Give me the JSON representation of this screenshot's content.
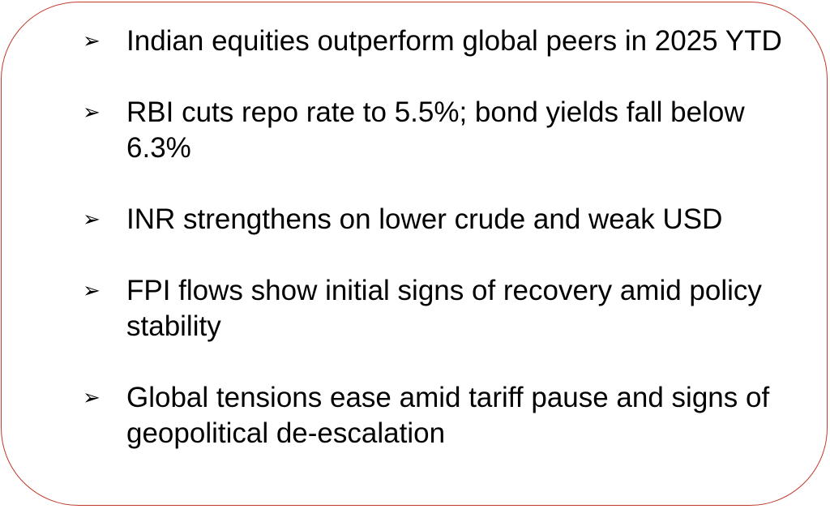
{
  "bullets": [
    {
      "marker": "➢",
      "text": "Indian equities outperform global peers in 2025 YTD"
    },
    {
      "marker": "➢",
      "text": "RBI cuts repo rate to 5.5%; bond yields fall below 6.3%"
    },
    {
      "marker": "➢",
      "text": "INR strengthens on lower crude and weak USD"
    },
    {
      "marker": "➢",
      "text": "FPI flows show initial signs of recovery amid policy stability"
    },
    {
      "marker": "➢",
      "text": "Global tensions ease amid tariff pause and signs of geopolitical de-escalation"
    }
  ],
  "colors": {
    "border": "#c0392b",
    "text": "#000000",
    "background": "#ffffff"
  }
}
